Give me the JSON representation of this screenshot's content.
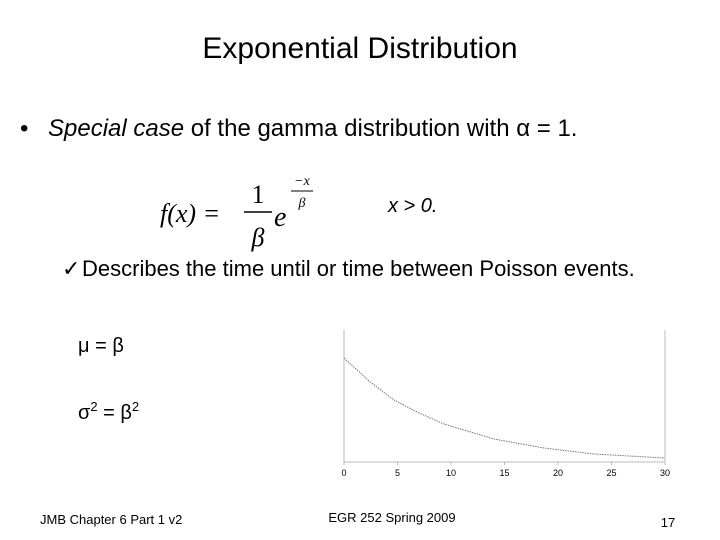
{
  "slide": {
    "title": "Exponential Distribution",
    "bullet": {
      "marker": "•",
      "italic": "Special case",
      "rest": " of the gamma distribution with α = 1."
    },
    "formula": {
      "lhs": "f(x) =",
      "numerator": "1",
      "denominator": "β",
      "base": "e",
      "exp_numerator": "−x",
      "exp_denominator": "β"
    },
    "condition": "x > 0.",
    "check": {
      "marker": "✓",
      "text": "Describes the time until or time between Poisson events."
    },
    "mean": "μ = β",
    "variance": {
      "sigma": "σ",
      "sup1": "2",
      "mid": " = β",
      "sup2": "2"
    },
    "plot": {
      "xlim": [
        0,
        30
      ],
      "xticks": [
        0,
        5,
        10,
        15,
        20,
        25,
        30
      ]
    },
    "footer": {
      "left": "JMB Chapter 6 Part 1 v2",
      "center": "EGR 252 Spring 2009",
      "page": "17"
    }
  }
}
